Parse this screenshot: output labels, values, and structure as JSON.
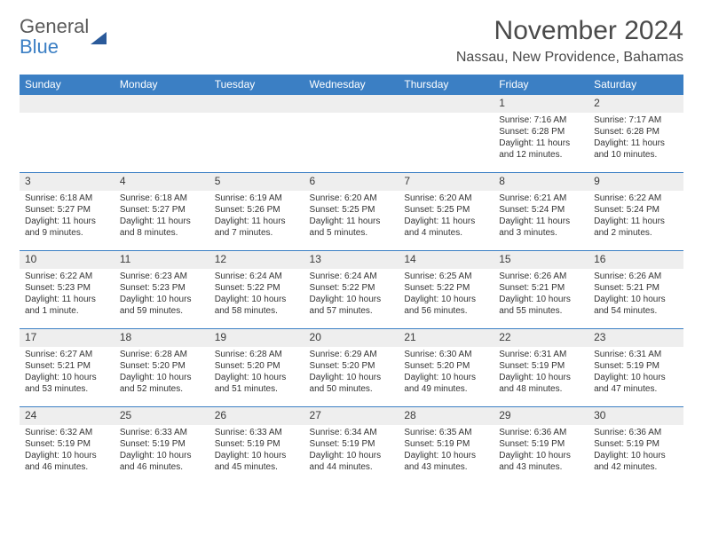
{
  "logo": {
    "line1": "General",
    "line2": "Blue"
  },
  "title": "November 2024",
  "location": "Nassau, New Providence, Bahamas",
  "colors": {
    "header_bg": "#3b7fc4",
    "header_fg": "#ffffff",
    "daynum_bg": "#eeeeee",
    "border": "#3b7fc4",
    "text": "#333333",
    "background": "#ffffff"
  },
  "weekdays": [
    "Sunday",
    "Monday",
    "Tuesday",
    "Wednesday",
    "Thursday",
    "Friday",
    "Saturday"
  ],
  "weeks": [
    [
      null,
      null,
      null,
      null,
      null,
      {
        "n": "1",
        "sr": "Sunrise: 7:16 AM",
        "ss": "Sunset: 6:28 PM",
        "dl1": "Daylight: 11 hours",
        "dl2": "and 12 minutes."
      },
      {
        "n": "2",
        "sr": "Sunrise: 7:17 AM",
        "ss": "Sunset: 6:28 PM",
        "dl1": "Daylight: 11 hours",
        "dl2": "and 10 minutes."
      }
    ],
    [
      {
        "n": "3",
        "sr": "Sunrise: 6:18 AM",
        "ss": "Sunset: 5:27 PM",
        "dl1": "Daylight: 11 hours",
        "dl2": "and 9 minutes."
      },
      {
        "n": "4",
        "sr": "Sunrise: 6:18 AM",
        "ss": "Sunset: 5:27 PM",
        "dl1": "Daylight: 11 hours",
        "dl2": "and 8 minutes."
      },
      {
        "n": "5",
        "sr": "Sunrise: 6:19 AM",
        "ss": "Sunset: 5:26 PM",
        "dl1": "Daylight: 11 hours",
        "dl2": "and 7 minutes."
      },
      {
        "n": "6",
        "sr": "Sunrise: 6:20 AM",
        "ss": "Sunset: 5:25 PM",
        "dl1": "Daylight: 11 hours",
        "dl2": "and 5 minutes."
      },
      {
        "n": "7",
        "sr": "Sunrise: 6:20 AM",
        "ss": "Sunset: 5:25 PM",
        "dl1": "Daylight: 11 hours",
        "dl2": "and 4 minutes."
      },
      {
        "n": "8",
        "sr": "Sunrise: 6:21 AM",
        "ss": "Sunset: 5:24 PM",
        "dl1": "Daylight: 11 hours",
        "dl2": "and 3 minutes."
      },
      {
        "n": "9",
        "sr": "Sunrise: 6:22 AM",
        "ss": "Sunset: 5:24 PM",
        "dl1": "Daylight: 11 hours",
        "dl2": "and 2 minutes."
      }
    ],
    [
      {
        "n": "10",
        "sr": "Sunrise: 6:22 AM",
        "ss": "Sunset: 5:23 PM",
        "dl1": "Daylight: 11 hours",
        "dl2": "and 1 minute."
      },
      {
        "n": "11",
        "sr": "Sunrise: 6:23 AM",
        "ss": "Sunset: 5:23 PM",
        "dl1": "Daylight: 10 hours",
        "dl2": "and 59 minutes."
      },
      {
        "n": "12",
        "sr": "Sunrise: 6:24 AM",
        "ss": "Sunset: 5:22 PM",
        "dl1": "Daylight: 10 hours",
        "dl2": "and 58 minutes."
      },
      {
        "n": "13",
        "sr": "Sunrise: 6:24 AM",
        "ss": "Sunset: 5:22 PM",
        "dl1": "Daylight: 10 hours",
        "dl2": "and 57 minutes."
      },
      {
        "n": "14",
        "sr": "Sunrise: 6:25 AM",
        "ss": "Sunset: 5:22 PM",
        "dl1": "Daylight: 10 hours",
        "dl2": "and 56 minutes."
      },
      {
        "n": "15",
        "sr": "Sunrise: 6:26 AM",
        "ss": "Sunset: 5:21 PM",
        "dl1": "Daylight: 10 hours",
        "dl2": "and 55 minutes."
      },
      {
        "n": "16",
        "sr": "Sunrise: 6:26 AM",
        "ss": "Sunset: 5:21 PM",
        "dl1": "Daylight: 10 hours",
        "dl2": "and 54 minutes."
      }
    ],
    [
      {
        "n": "17",
        "sr": "Sunrise: 6:27 AM",
        "ss": "Sunset: 5:21 PM",
        "dl1": "Daylight: 10 hours",
        "dl2": "and 53 minutes."
      },
      {
        "n": "18",
        "sr": "Sunrise: 6:28 AM",
        "ss": "Sunset: 5:20 PM",
        "dl1": "Daylight: 10 hours",
        "dl2": "and 52 minutes."
      },
      {
        "n": "19",
        "sr": "Sunrise: 6:28 AM",
        "ss": "Sunset: 5:20 PM",
        "dl1": "Daylight: 10 hours",
        "dl2": "and 51 minutes."
      },
      {
        "n": "20",
        "sr": "Sunrise: 6:29 AM",
        "ss": "Sunset: 5:20 PM",
        "dl1": "Daylight: 10 hours",
        "dl2": "and 50 minutes."
      },
      {
        "n": "21",
        "sr": "Sunrise: 6:30 AM",
        "ss": "Sunset: 5:20 PM",
        "dl1": "Daylight: 10 hours",
        "dl2": "and 49 minutes."
      },
      {
        "n": "22",
        "sr": "Sunrise: 6:31 AM",
        "ss": "Sunset: 5:19 PM",
        "dl1": "Daylight: 10 hours",
        "dl2": "and 48 minutes."
      },
      {
        "n": "23",
        "sr": "Sunrise: 6:31 AM",
        "ss": "Sunset: 5:19 PM",
        "dl1": "Daylight: 10 hours",
        "dl2": "and 47 minutes."
      }
    ],
    [
      {
        "n": "24",
        "sr": "Sunrise: 6:32 AM",
        "ss": "Sunset: 5:19 PM",
        "dl1": "Daylight: 10 hours",
        "dl2": "and 46 minutes."
      },
      {
        "n": "25",
        "sr": "Sunrise: 6:33 AM",
        "ss": "Sunset: 5:19 PM",
        "dl1": "Daylight: 10 hours",
        "dl2": "and 46 minutes."
      },
      {
        "n": "26",
        "sr": "Sunrise: 6:33 AM",
        "ss": "Sunset: 5:19 PM",
        "dl1": "Daylight: 10 hours",
        "dl2": "and 45 minutes."
      },
      {
        "n": "27",
        "sr": "Sunrise: 6:34 AM",
        "ss": "Sunset: 5:19 PM",
        "dl1": "Daylight: 10 hours",
        "dl2": "and 44 minutes."
      },
      {
        "n": "28",
        "sr": "Sunrise: 6:35 AM",
        "ss": "Sunset: 5:19 PM",
        "dl1": "Daylight: 10 hours",
        "dl2": "and 43 minutes."
      },
      {
        "n": "29",
        "sr": "Sunrise: 6:36 AM",
        "ss": "Sunset: 5:19 PM",
        "dl1": "Daylight: 10 hours",
        "dl2": "and 43 minutes."
      },
      {
        "n": "30",
        "sr": "Sunrise: 6:36 AM",
        "ss": "Sunset: 5:19 PM",
        "dl1": "Daylight: 10 hours",
        "dl2": "and 42 minutes."
      }
    ]
  ]
}
